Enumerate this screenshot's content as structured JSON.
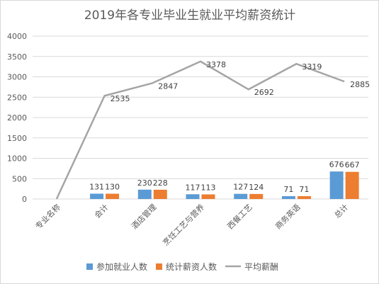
{
  "chart_data": {
    "type": "bar",
    "title": "2019年各专业毕业生就业平均薪资统计",
    "categories": [
      "专业名称",
      "会计",
      "酒店管理",
      "烹饪工艺与营养",
      "西餐工艺",
      "商务英语",
      "总计"
    ],
    "series": [
      {
        "name": "参加就业人数",
        "kind": "bar",
        "color": "#5b9bd5",
        "values": [
          null,
          131,
          230,
          117,
          127,
          71,
          676
        ]
      },
      {
        "name": "统计薪资人数",
        "kind": "bar",
        "color": "#ed7d31",
        "values": [
          null,
          130,
          228,
          113,
          124,
          71,
          667
        ]
      },
      {
        "name": "平均薪酬",
        "kind": "line",
        "color": "#a5a5a5",
        "values": [
          0,
          2535,
          2847,
          3378,
          2692,
          3319,
          2885
        ]
      }
    ],
    "line_labels": [
      "",
      "2535",
      "2847",
      "3378",
      "2692",
      "3319",
      "2885"
    ],
    "bar_labels": [
      [
        "",
        "131",
        "230",
        "117",
        "127",
        "71",
        "676"
      ],
      [
        "",
        "130",
        "228",
        "113",
        "124",
        "71",
        "667"
      ]
    ],
    "yticks": [
      "0",
      "500",
      "1000",
      "1500",
      "2000",
      "2500",
      "3000",
      "3500",
      "4000"
    ],
    "ylim": [
      0,
      4000
    ],
    "grid": true,
    "legend_position": "bottom"
  }
}
